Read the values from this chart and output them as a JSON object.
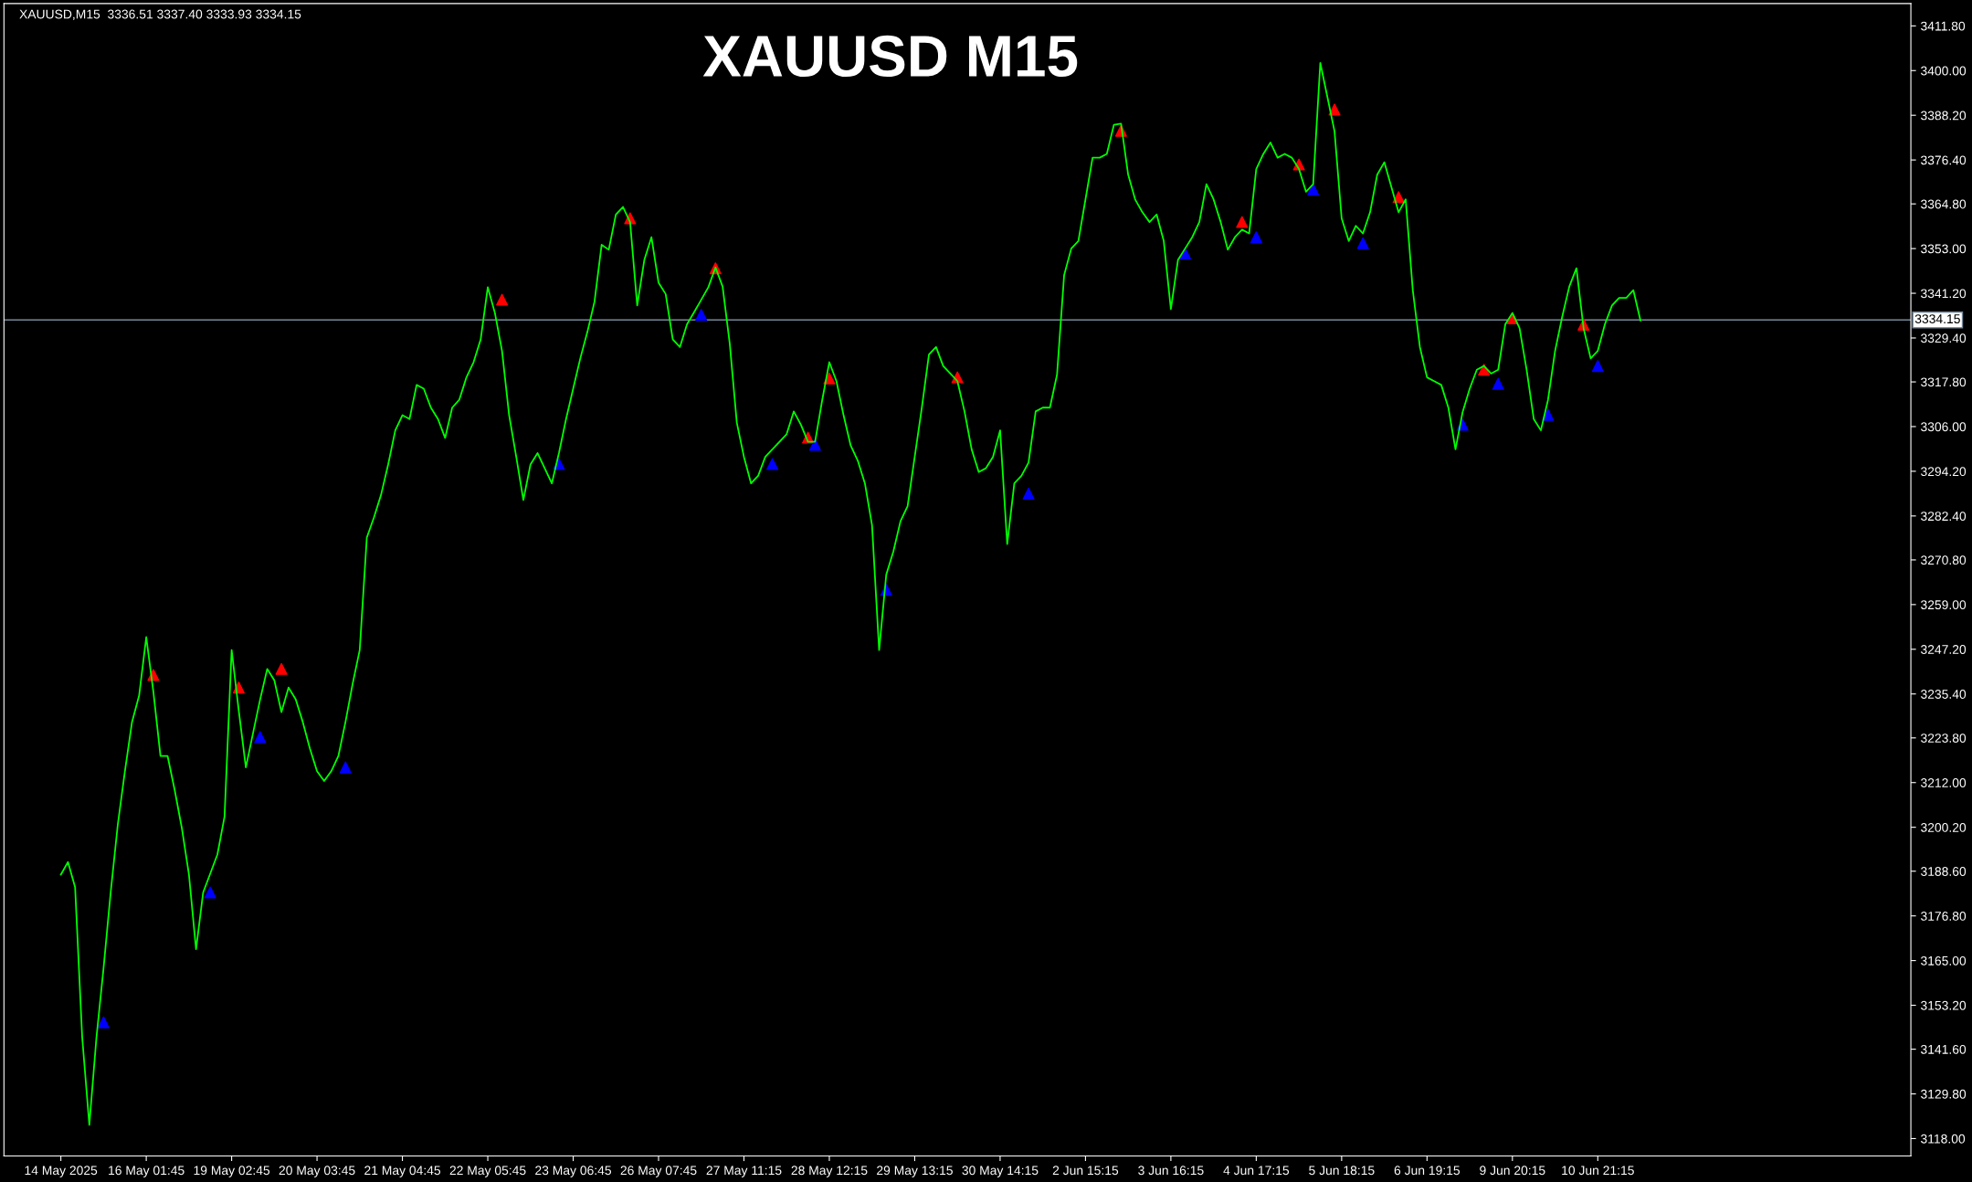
{
  "chart_data": {
    "type": "line",
    "title": "XAUUSD M15",
    "annotations": [
      "XAUUSD,M15  3336.51 3337.40 3333.93 3334.15"
    ],
    "categories": [
      "14 May 2025",
      null,
      null,
      null,
      null,
      null,
      null,
      null,
      null,
      null,
      null,
      null,
      "16 May 01:45",
      null,
      null,
      null,
      null,
      null,
      null,
      null,
      null,
      null,
      null,
      null,
      "19 May 02:45",
      null,
      null,
      null,
      null,
      null,
      null,
      null,
      null,
      null,
      null,
      null,
      "20 May 03:45",
      null,
      null,
      null,
      null,
      null,
      null,
      null,
      null,
      null,
      null,
      null,
      "21 May 04:45",
      null,
      null,
      null,
      null,
      null,
      null,
      null,
      null,
      null,
      null,
      null,
      "22 May 05:45",
      null,
      null,
      null,
      null,
      null,
      null,
      null,
      null,
      null,
      null,
      null,
      "23 May 06:45",
      null,
      null,
      null,
      null,
      null,
      null,
      null,
      null,
      null,
      null,
      null,
      "26 May 07:45",
      null,
      null,
      null,
      null,
      null,
      null,
      null,
      null,
      null,
      null,
      null,
      "27 May 11:15",
      null,
      null,
      null,
      null,
      null,
      null,
      null,
      null,
      null,
      null,
      null,
      "28 May 12:15",
      null,
      null,
      null,
      null,
      null,
      null,
      null,
      null,
      null,
      null,
      null,
      "29 May 13:15",
      null,
      null,
      null,
      null,
      null,
      null,
      null,
      null,
      null,
      null,
      null,
      "30 May 14:15",
      null,
      null,
      null,
      null,
      null,
      null,
      null,
      null,
      null,
      null,
      null,
      "2 Jun 15:15",
      null,
      null,
      null,
      null,
      null,
      null,
      null,
      null,
      null,
      null,
      null,
      "3 Jun 16:15",
      null,
      null,
      null,
      null,
      null,
      null,
      null,
      null,
      null,
      null,
      null,
      "4 Jun 17:15",
      null,
      null,
      null,
      null,
      null,
      null,
      null,
      null,
      null,
      null,
      null,
      "5 Jun 18:15",
      null,
      null,
      null,
      null,
      null,
      null,
      null,
      null,
      null,
      null,
      null,
      "6 Jun 19:15",
      null,
      null,
      null,
      null,
      null,
      null,
      null,
      null,
      null,
      null,
      null,
      "9 Jun 20:15",
      null,
      null,
      null,
      null,
      null,
      null,
      null,
      null,
      null,
      null,
      null,
      "10 Jun 21:15",
      null,
      null,
      null,
      null,
      null,
      null
    ],
    "series": [
      {
        "color": "#00ff00",
        "values": [
          3187.7,
          3191.0,
          3184.4,
          3144.7,
          3121.6,
          3144.7,
          3163,
          3183,
          3200.9,
          3215,
          3228,
          3235,
          3250.4,
          3236,
          3219,
          3219,
          3210,
          3200,
          3187.7,
          3168,
          3183,
          3188,
          3193,
          3203,
          3247.0,
          3231,
          3216,
          3225,
          3233.9,
          3242,
          3239,
          3230.6,
          3237.1,
          3234,
          3228,
          3221,
          3215,
          3212.4,
          3215,
          3219,
          3228,
          3238,
          3247,
          3276.7,
          3282,
          3288,
          3296,
          3305,
          3309,
          3308,
          3317,
          3316,
          3311,
          3308,
          3303,
          3311,
          3313.1,
          3319,
          3323,
          3329,
          3342.8,
          3336,
          3326,
          3309,
          3298,
          3286.6,
          3296,
          3299,
          3295,
          3291,
          3299,
          3308,
          3316,
          3324,
          3331,
          3339,
          3354,
          3352.7,
          3362,
          3364,
          3360,
          3338,
          3350,
          3356,
          3344,
          3341,
          3329,
          3327,
          3333,
          3336.2,
          3339.5,
          3342.8,
          3348,
          3343,
          3328,
          3307,
          3298,
          3291,
          3293,
          3298,
          3300,
          3302,
          3304,
          3310,
          3306.5,
          3302,
          3302,
          3313,
          3323,
          3318,
          3309,
          3301,
          3297,
          3291,
          3280,
          3247,
          3266.9,
          3273,
          3281,
          3285,
          3298,
          3311,
          3325,
          3327,
          3322,
          3320,
          3318,
          3310,
          3300,
          3294,
          3295,
          3298,
          3305,
          3275,
          3291,
          3293,
          3296.5,
          3310,
          3311,
          3311,
          3319.7,
          3346,
          3353,
          3355,
          3366,
          3377,
          3377,
          3378,
          3385.7,
          3386,
          3372.5,
          3365.9,
          3362.6,
          3360,
          3362,
          3355,
          3337,
          3350,
          3353,
          3356,
          3360,
          3370,
          3366,
          3360,
          3352.7,
          3356,
          3358,
          3357,
          3374,
          3378,
          3381,
          3377,
          3378,
          3377,
          3374,
          3368,
          3370,
          3402,
          3393,
          3384,
          3361,
          3355,
          3359,
          3357,
          3362.6,
          3372.5,
          3375.8,
          3369.2,
          3362.6,
          3366,
          3342,
          3327,
          3319,
          3318,
          3317,
          3311,
          3300,
          3309.8,
          3316,
          3321,
          3322,
          3320,
          3321,
          3333,
          3336,
          3332,
          3321,
          3308,
          3305,
          3313,
          3326,
          3335,
          3343,
          3347.8,
          3332,
          3324,
          3326,
          3333,
          3338,
          3340,
          3340,
          3342,
          3334
        ]
      },
      {
        "type": "scatter",
        "color": "#ff0000",
        "marker": "triangle",
        "values": [
          null,
          null,
          null,
          null,
          null,
          null,
          null,
          null,
          null,
          null,
          null,
          null,
          null,
          3240.4,
          null,
          null,
          null,
          null,
          null,
          null,
          null,
          null,
          null,
          null,
          null,
          3237.1,
          null,
          null,
          null,
          null,
          null,
          3242.0,
          null,
          null,
          null,
          null,
          null,
          null,
          null,
          null,
          null,
          null,
          null,
          null,
          null,
          null,
          null,
          null,
          null,
          null,
          null,
          null,
          null,
          null,
          null,
          null,
          null,
          null,
          null,
          null,
          null,
          null,
          3339.5,
          null,
          null,
          null,
          null,
          null,
          null,
          null,
          null,
          null,
          null,
          null,
          null,
          null,
          null,
          null,
          null,
          null,
          3361.0,
          null,
          null,
          null,
          null,
          null,
          null,
          null,
          null,
          null,
          null,
          null,
          3347.8,
          null,
          null,
          null,
          null,
          null,
          null,
          null,
          null,
          null,
          null,
          null,
          null,
          3303.1,
          null,
          null,
          3318.7,
          null,
          null,
          null,
          null,
          null,
          null,
          null,
          null,
          null,
          null,
          null,
          null,
          null,
          null,
          null,
          null,
          null,
          3319.0,
          null,
          null,
          null,
          null,
          null,
          null,
          null,
          null,
          null,
          null,
          null,
          null,
          null,
          null,
          null,
          null,
          null,
          null,
          null,
          null,
          null,
          null,
          3384.1,
          null,
          null,
          null,
          null,
          null,
          null,
          null,
          null,
          null,
          null,
          null,
          null,
          null,
          null,
          null,
          null,
          3360.0,
          null,
          null,
          null,
          null,
          null,
          null,
          null,
          3375.2,
          null,
          null,
          null,
          null,
          3389.7,
          null,
          null,
          null,
          null,
          null,
          null,
          null,
          null,
          3366.6,
          null,
          null,
          null,
          null,
          null,
          null,
          null,
          null,
          null,
          null,
          null,
          3321.0,
          null,
          null,
          null,
          3334.6,
          null,
          null,
          null,
          null,
          null,
          null,
          null,
          null,
          null,
          3332.9,
          null,
          null,
          null,
          null,
          null,
          null,
          null,
          null
        ]
      },
      {
        "type": "scatter",
        "color": "#0000ff",
        "marker": "triangle",
        "values": [
          null,
          null,
          null,
          null,
          null,
          null,
          3148.7,
          null,
          null,
          null,
          null,
          null,
          null,
          null,
          null,
          null,
          null,
          null,
          null,
          null,
          null,
          3183.0,
          null,
          null,
          null,
          null,
          null,
          null,
          3224.0,
          null,
          null,
          null,
          null,
          null,
          null,
          null,
          null,
          null,
          null,
          null,
          3216.0,
          null,
          null,
          null,
          null,
          null,
          null,
          null,
          null,
          null,
          null,
          null,
          null,
          null,
          null,
          null,
          null,
          null,
          null,
          null,
          null,
          null,
          null,
          null,
          null,
          null,
          null,
          null,
          null,
          null,
          3296.1,
          null,
          null,
          null,
          null,
          null,
          null,
          null,
          null,
          null,
          null,
          null,
          null,
          null,
          null,
          null,
          null,
          null,
          null,
          null,
          3335.5,
          null,
          null,
          null,
          null,
          null,
          null,
          null,
          null,
          null,
          3296.1,
          null,
          null,
          null,
          null,
          null,
          3301.2,
          null,
          null,
          null,
          null,
          null,
          null,
          null,
          null,
          null,
          3262.9,
          null,
          null,
          null,
          null,
          null,
          null,
          null,
          null,
          null,
          null,
          null,
          null,
          null,
          null,
          null,
          null,
          null,
          null,
          null,
          3288.3,
          null,
          null,
          null,
          null,
          null,
          null,
          null,
          null,
          null,
          null,
          null,
          null,
          null,
          null,
          null,
          null,
          null,
          null,
          null,
          null,
          null,
          3351.7,
          null,
          null,
          null,
          null,
          null,
          null,
          null,
          null,
          null,
          3356.0,
          null,
          null,
          null,
          null,
          null,
          null,
          null,
          3368.6,
          null,
          null,
          null,
          null,
          null,
          null,
          3354.4,
          null,
          null,
          null,
          null,
          null,
          null,
          null,
          null,
          null,
          null,
          null,
          null,
          null,
          3306.5,
          null,
          null,
          null,
          null,
          3317.3,
          null,
          null,
          null,
          null,
          null,
          null,
          3309.1,
          null,
          null,
          null,
          null,
          null,
          null,
          3322.0,
          null,
          null,
          null,
          null,
          null,
          null
        ]
      }
    ],
    "ylim": [
      3113.4,
      3417.7
    ],
    "yticks": [
      {
        "value": 3118.0,
        "label": "3118.00"
      },
      {
        "value": 3129.8,
        "label": "3129.80"
      },
      {
        "value": 3141.6,
        "label": "3141.60"
      },
      {
        "value": 3153.2,
        "label": "3153.20"
      },
      {
        "value": 3165.0,
        "label": "3165.00"
      },
      {
        "value": 3176.8,
        "label": "3176.80"
      },
      {
        "value": 3188.6,
        "label": "3188.60"
      },
      {
        "value": 3200.2,
        "label": "3200.20"
      },
      {
        "value": 3212.0,
        "label": "3212.00"
      },
      {
        "value": 3223.8,
        "label": "3223.80"
      },
      {
        "value": 3235.4,
        "label": "3235.40"
      },
      {
        "value": 3247.2,
        "label": "3247.20"
      },
      {
        "value": 3259.0,
        "label": "3259.00"
      },
      {
        "value": 3270.8,
        "label": "3270.80"
      },
      {
        "value": 3282.4,
        "label": "3282.40"
      },
      {
        "value": 3294.2,
        "label": "3294.20"
      },
      {
        "value": 3306.0,
        "label": "3306.00"
      },
      {
        "value": 3317.8,
        "label": "3317.80"
      },
      {
        "value": 3329.4,
        "label": "3329.40"
      },
      {
        "value": 3341.2,
        "label": "3341.20"
      },
      {
        "value": 3353.0,
        "label": "3353.00"
      },
      {
        "value": 3364.8,
        "label": "3364.80"
      },
      {
        "value": 3376.4,
        "label": "3376.40"
      },
      {
        "value": 3388.2,
        "label": "3388.20"
      },
      {
        "value": 3400.0,
        "label": "3400.00"
      },
      {
        "value": 3411.8,
        "label": "3411.80"
      }
    ],
    "ref_lines": [
      {
        "axis": "y",
        "value": 3334.15,
        "label": "3334.15",
        "color": "#778899"
      }
    ],
    "grid": false,
    "legend": false
  }
}
